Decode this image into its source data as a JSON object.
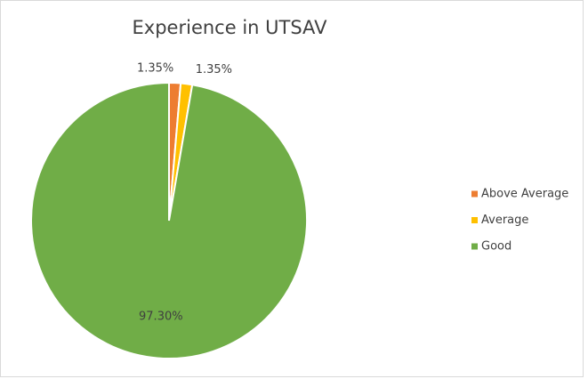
{
  "chart_data": {
    "type": "pie",
    "title": "Experience in UTSAV",
    "categories": [
      "Above Average",
      "Average",
      "Good"
    ],
    "values": [
      1.35,
      1.35,
      97.3
    ],
    "value_labels": [
      "1.35%",
      "1.35%",
      "97.30%"
    ],
    "colors": [
      "#ed7d31",
      "#ffc000",
      "#70ad47"
    ],
    "legend": "right"
  }
}
